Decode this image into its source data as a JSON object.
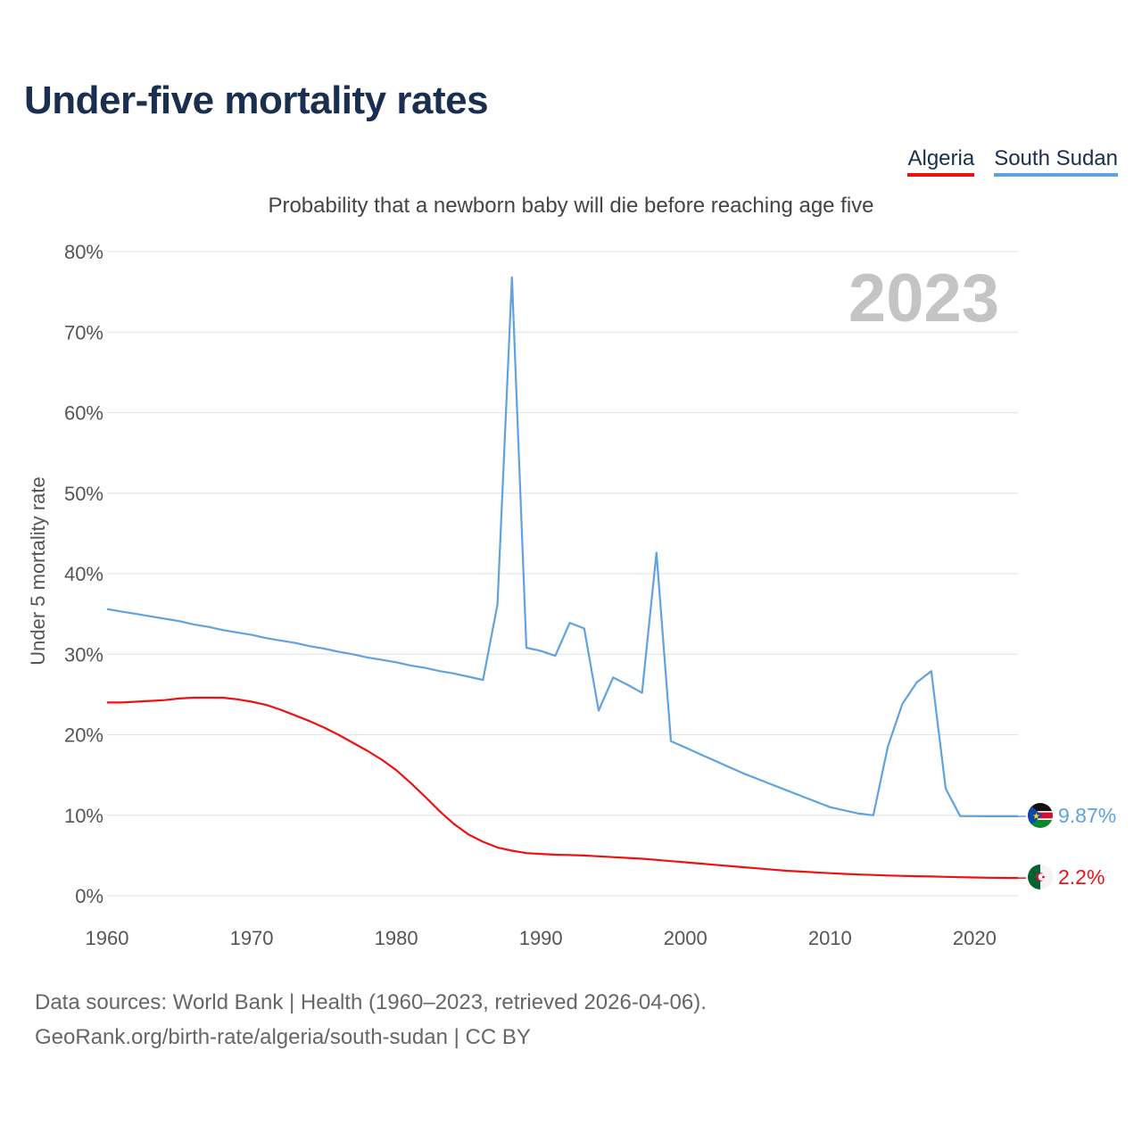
{
  "title": "Under-five mortality rates",
  "subtitle": "Probability that a newborn baby will die before reaching age five",
  "legend": [
    {
      "name": "Algeria",
      "color": "#ee1111"
    },
    {
      "name": "South Sudan",
      "color": "#5fa2e0"
    }
  ],
  "current_year": "2023",
  "footer": {
    "line1": "Data sources: World Bank | Health (1960–2023, retrieved 2026-04-06).",
    "line2": "GeoRank.org/birth-rate/algeria/south-sudan | CC BY"
  },
  "chart_data": {
    "type": "line",
    "title": "Under-five mortality rates",
    "subtitle": "Probability that a newborn baby will die before reaching age five",
    "xlabel": "",
    "ylabel": "Under 5 mortality rate",
    "xlim": [
      1960,
      2023
    ],
    "ylim": [
      0,
      80
    ],
    "x_ticks": [
      1960,
      1970,
      1980,
      1990,
      2000,
      2010,
      2020
    ],
    "y_ticks": [
      0,
      10,
      20,
      30,
      40,
      50,
      60,
      70,
      80
    ],
    "y_tick_labels": [
      "0%",
      "10%",
      "20%",
      "30%",
      "40%",
      "50%",
      "60%",
      "70%",
      "80%"
    ],
    "grid": true,
    "legend_position": "top-right",
    "series": [
      {
        "name": "Algeria",
        "color": "#ee1111",
        "end_label": "2.2%",
        "flag_icon": "algeria-flag-icon",
        "x": [
          1960,
          1961,
          1962,
          1963,
          1964,
          1965,
          1966,
          1967,
          1968,
          1969,
          1970,
          1971,
          1972,
          1973,
          1974,
          1975,
          1976,
          1977,
          1978,
          1979,
          1980,
          1981,
          1982,
          1983,
          1984,
          1985,
          1986,
          1987,
          1988,
          1989,
          1990,
          1991,
          1992,
          1993,
          1994,
          1995,
          1996,
          1997,
          1998,
          1999,
          2000,
          2001,
          2002,
          2003,
          2004,
          2005,
          2006,
          2007,
          2008,
          2009,
          2010,
          2011,
          2012,
          2013,
          2014,
          2015,
          2016,
          2017,
          2018,
          2019,
          2020,
          2021,
          2022,
          2023
        ],
        "values": [
          24.0,
          24.0,
          24.1,
          24.2,
          24.3,
          24.5,
          24.6,
          24.6,
          24.6,
          24.4,
          24.1,
          23.7,
          23.1,
          22.4,
          21.7,
          20.9,
          20.0,
          19.0,
          18.0,
          16.9,
          15.6,
          14.0,
          12.3,
          10.5,
          8.9,
          7.6,
          6.7,
          6.0,
          5.6,
          5.3,
          5.2,
          5.1,
          5.05,
          5.0,
          4.9,
          4.8,
          4.7,
          4.6,
          4.45,
          4.3,
          4.15,
          4.0,
          3.85,
          3.7,
          3.55,
          3.4,
          3.25,
          3.1,
          3.0,
          2.9,
          2.8,
          2.72,
          2.64,
          2.58,
          2.52,
          2.47,
          2.43,
          2.39,
          2.35,
          2.31,
          2.27,
          2.24,
          2.22,
          2.2
        ]
      },
      {
        "name": "South Sudan",
        "color": "#5fa2e0",
        "end_label": "9.87%",
        "flag_icon": "south-sudan-flag-icon",
        "x": [
          1960,
          1961,
          1962,
          1963,
          1964,
          1965,
          1966,
          1967,
          1968,
          1969,
          1970,
          1971,
          1972,
          1973,
          1974,
          1975,
          1976,
          1977,
          1978,
          1979,
          1980,
          1981,
          1982,
          1983,
          1984,
          1985,
          1986,
          1987,
          1988,
          1989,
          1990,
          1991,
          1992,
          1993,
          1994,
          1995,
          1996,
          1997,
          1998,
          1999,
          2000,
          2001,
          2002,
          2003,
          2004,
          2005,
          2006,
          2007,
          2008,
          2009,
          2010,
          2011,
          2012,
          2013,
          2014,
          2015,
          2016,
          2017,
          2018,
          2019,
          2020,
          2021,
          2022,
          2023
        ],
        "values": [
          35.6,
          35.3,
          35.0,
          34.7,
          34.4,
          34.1,
          33.7,
          33.4,
          33.0,
          32.7,
          32.4,
          32.0,
          31.7,
          31.4,
          31.0,
          30.7,
          30.3,
          30.0,
          29.6,
          29.3,
          29.0,
          28.6,
          28.3,
          27.9,
          27.6,
          27.2,
          26.8,
          36.2,
          76.8,
          30.8,
          30.4,
          29.8,
          33.9,
          33.2,
          23.0,
          27.1,
          26.2,
          25.2,
          42.6,
          19.2,
          18.4,
          17.6,
          16.8,
          16.0,
          15.2,
          14.5,
          13.8,
          13.1,
          12.4,
          11.7,
          11.0,
          10.6,
          10.2,
          10.0,
          18.5,
          23.8,
          26.5,
          27.9,
          13.3,
          9.9,
          9.88,
          9.87,
          9.87,
          9.87
        ]
      }
    ]
  }
}
